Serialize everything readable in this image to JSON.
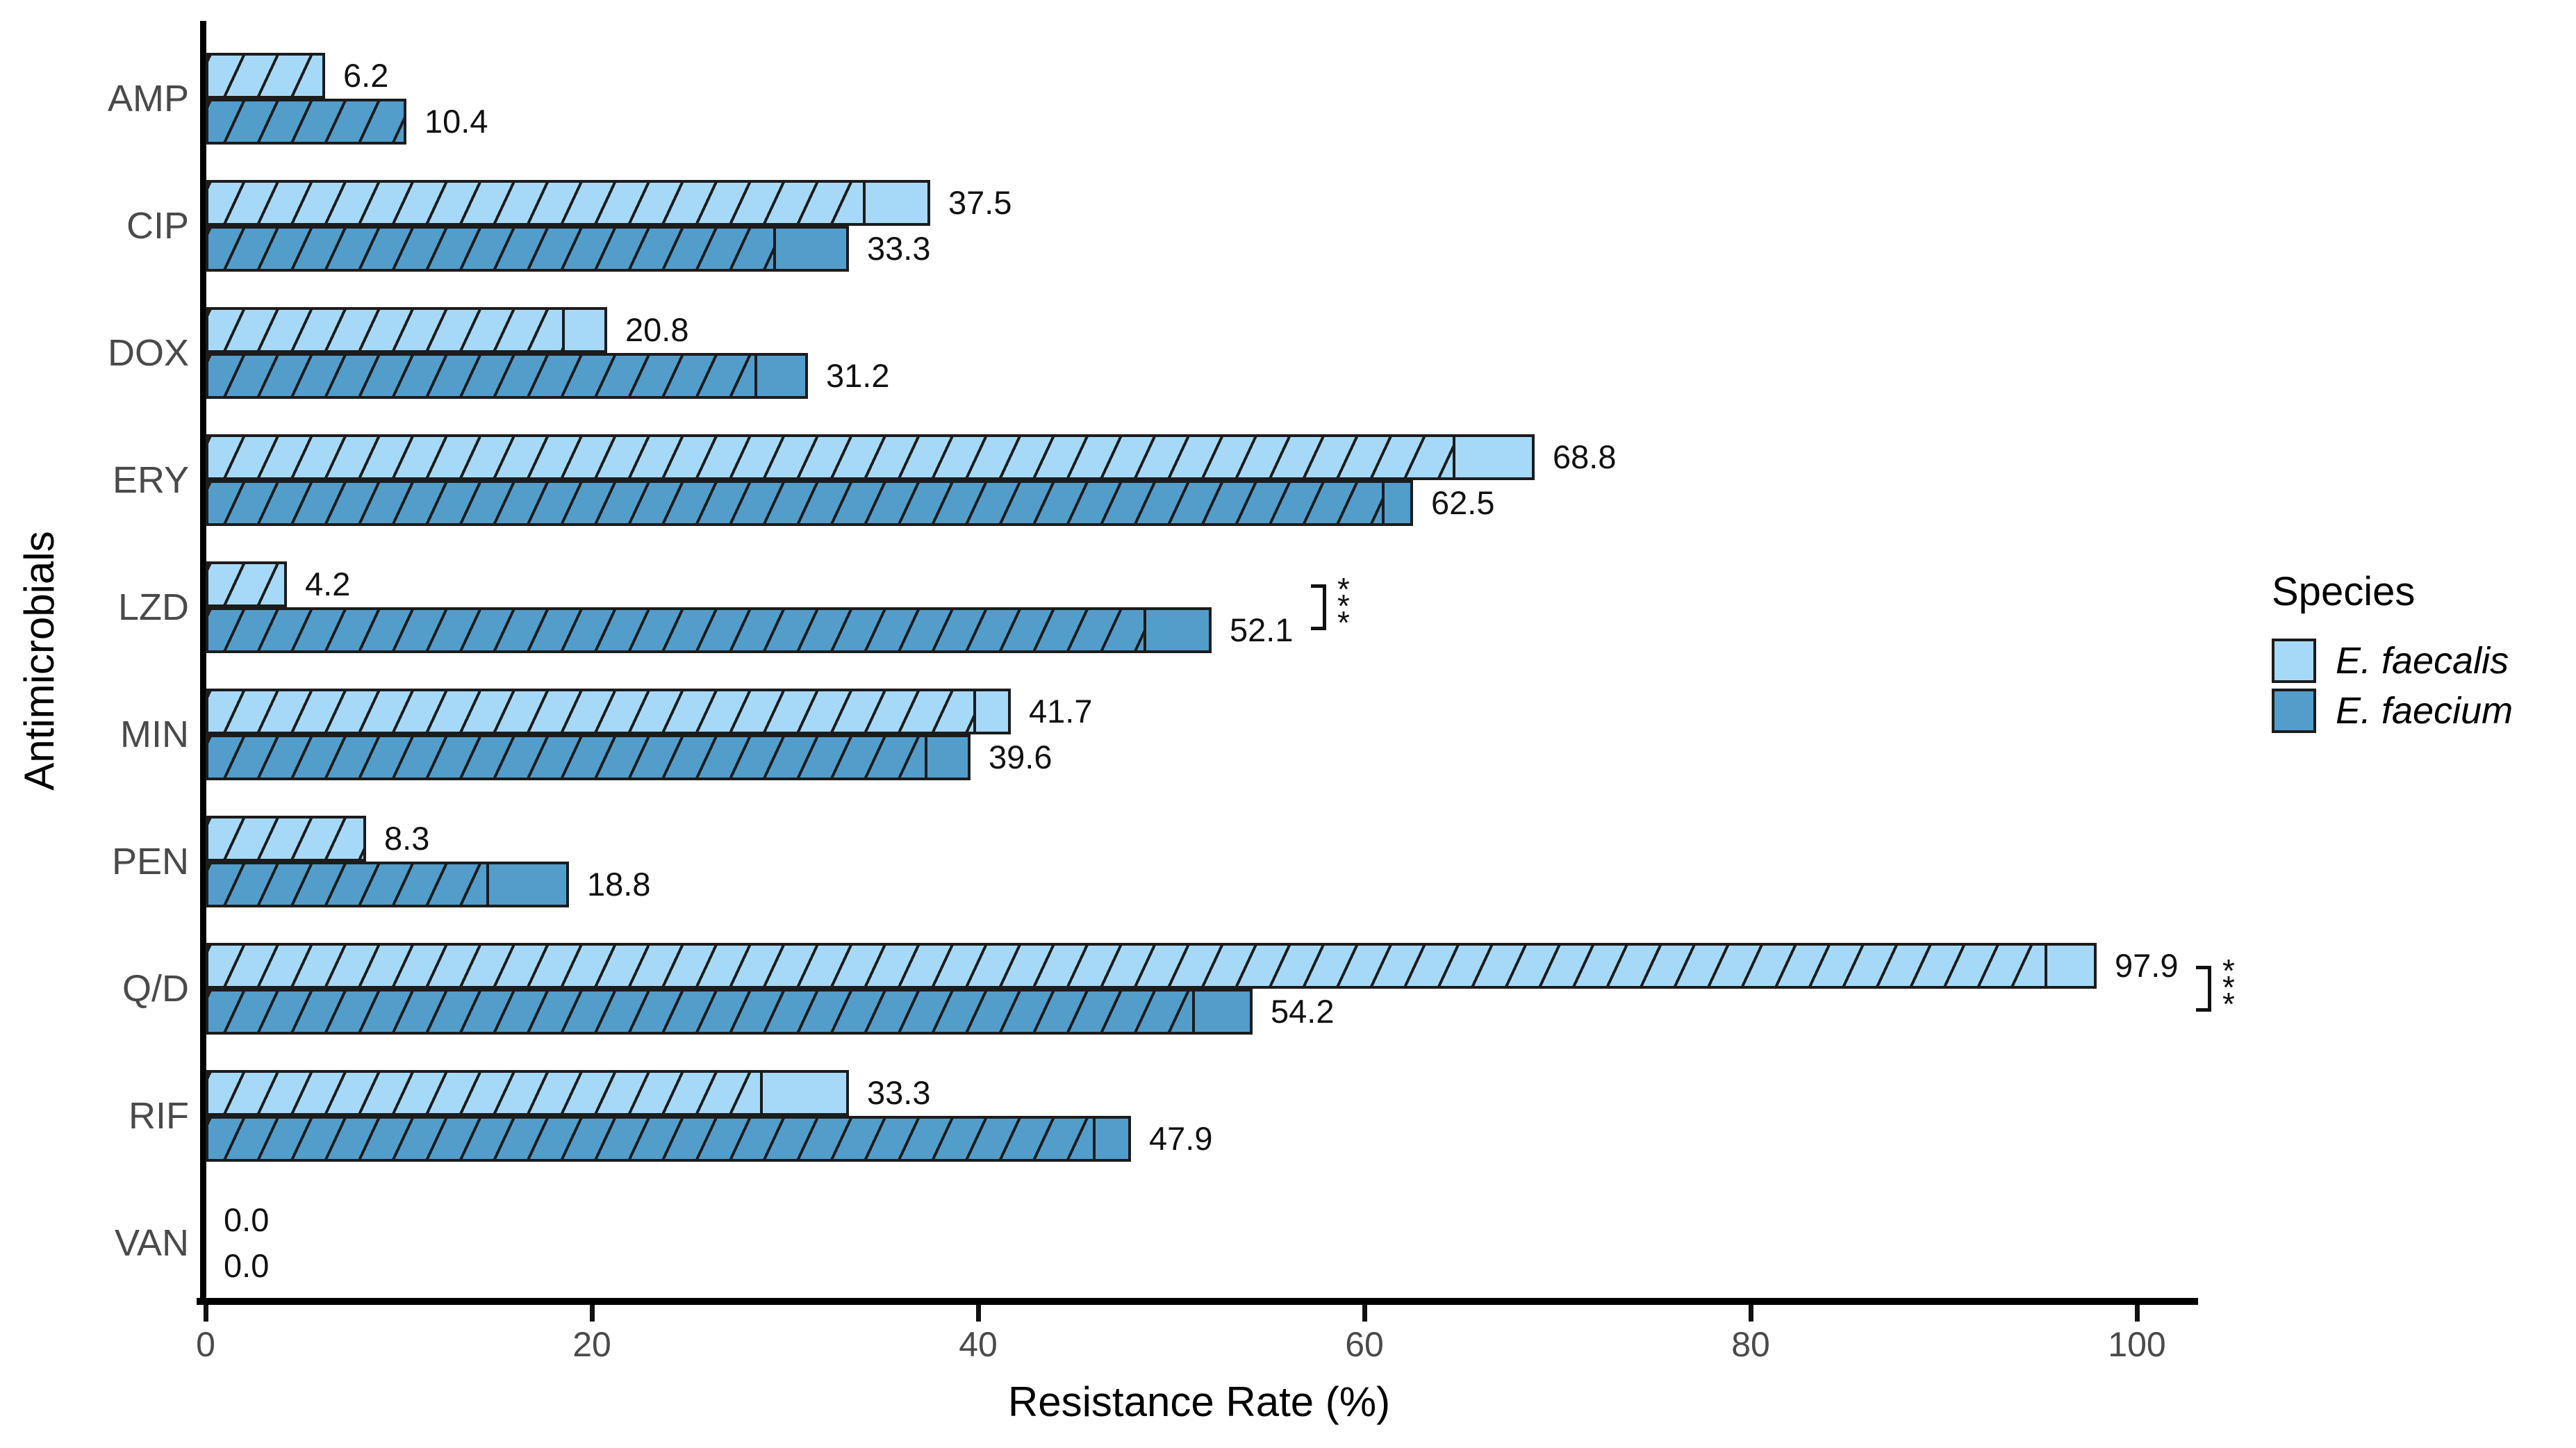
{
  "chart_data": {
    "type": "bar",
    "orientation": "horizontal",
    "title": "",
    "xlabel": "Resistance Rate (%)",
    "ylabel": "Antimicrobials",
    "xlim": [
      0,
      103
    ],
    "xticks": [
      0,
      20,
      40,
      60,
      80,
      100
    ],
    "grid": false,
    "bar_pattern": "diagonal-hatch",
    "categories": [
      "AMP",
      "CIP",
      "DOX",
      "ERY",
      "LZD",
      "MIN",
      "PEN",
      "Q/D",
      "RIF",
      "VAN"
    ],
    "series": [
      {
        "name": "E. faecalis",
        "color": "#A6D9F7",
        "values": [
          6.2,
          37.5,
          20.8,
          68.8,
          4.2,
          41.7,
          8.3,
          97.9,
          33.3,
          0.0
        ]
      },
      {
        "name": "E. faecium",
        "color": "#539DCB",
        "values": [
          10.4,
          33.3,
          31.2,
          62.5,
          52.1,
          39.6,
          18.8,
          54.2,
          47.9,
          0.0
        ]
      }
    ],
    "value_label_decimals": 1,
    "significance_brackets": [
      {
        "category": "LZD",
        "label": "***"
      },
      {
        "category": "Q/D",
        "label": "***"
      }
    ],
    "legend": {
      "title": "Species",
      "position": "right-middle"
    },
    "colors": {
      "bar_outline": "#1c1c1c",
      "hatch_line": "#1c1c1c",
      "axis_line": "#000000",
      "tick_label": "#4a4a4a",
      "category_label": "#4a4a4a",
      "value_label": "#111111",
      "background": "#ffffff"
    }
  }
}
